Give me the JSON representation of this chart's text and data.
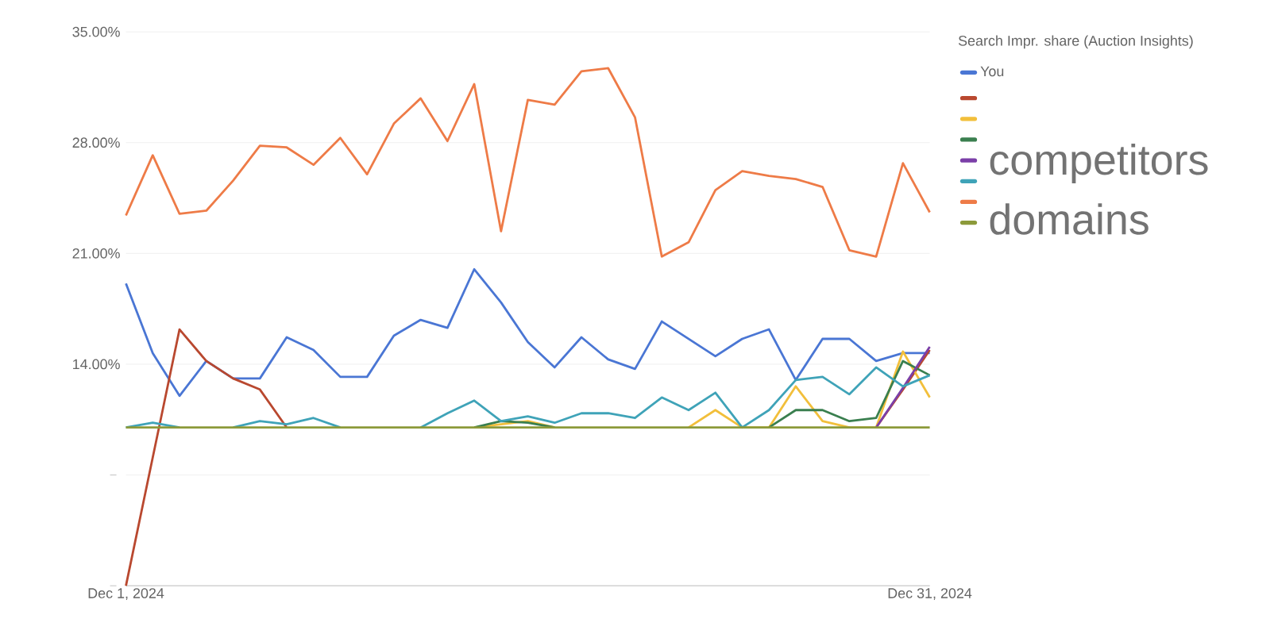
{
  "chart_data": {
    "type": "line",
    "legend_title": "Search Impr. share (Auction Insights)",
    "legend": "right",
    "grid": "y",
    "marker": "none",
    "line_style": "solid",
    "xlim": [
      "2024-12-01",
      "2024-12-31"
    ],
    "xticks": [
      {
        "value": "2024-12-01",
        "label": "Dec 1, 2024"
      },
      {
        "value": "2024-12-31",
        "label": "Dec 31, 2024"
      }
    ],
    "ylim": [
      0,
      35
    ],
    "yticks": [
      {
        "value": 0,
        "label": null
      },
      {
        "value": 7,
        "label": null
      },
      {
        "value": 14,
        "label": "14.00%"
      },
      {
        "value": 21,
        "label": "21.00%"
      },
      {
        "value": 28,
        "label": "28.00%"
      },
      {
        "value": 35,
        "label": "35.00%"
      }
    ],
    "annotations": [
      "competitors",
      "domains"
    ],
    "x": [
      "2024-12-01",
      "2024-12-02",
      "2024-12-03",
      "2024-12-04",
      "2024-12-05",
      "2024-12-06",
      "2024-12-07",
      "2024-12-08",
      "2024-12-09",
      "2024-12-10",
      "2024-12-11",
      "2024-12-12",
      "2024-12-13",
      "2024-12-14",
      "2024-12-15",
      "2024-12-16",
      "2024-12-17",
      "2024-12-18",
      "2024-12-19",
      "2024-12-20",
      "2024-12-21",
      "2024-12-22",
      "2024-12-23",
      "2024-12-24",
      "2024-12-25",
      "2024-12-26",
      "2024-12-27",
      "2024-12-28",
      "2024-12-29",
      "2024-12-30",
      "2024-12-31"
    ],
    "series": [
      {
        "name": "You",
        "color": "#4a76d4",
        "values": [
          19.1,
          14.7,
          12.0,
          14.2,
          13.1,
          13.1,
          15.7,
          14.9,
          13.2,
          13.2,
          15.8,
          16.8,
          16.3,
          20.0,
          17.9,
          15.4,
          13.8,
          15.7,
          14.3,
          13.7,
          16.7,
          15.6,
          14.5,
          15.6,
          16.2,
          13.0,
          15.6,
          15.6,
          14.2,
          14.7,
          14.7
        ]
      },
      {
        "color": "#b9482f",
        "values": [
          0,
          8.1,
          16.2,
          14.2,
          13.1,
          12.4,
          10.0,
          null,
          null,
          null,
          null,
          null,
          null,
          null,
          null,
          null,
          null,
          null,
          null,
          null,
          null,
          null,
          null,
          null,
          null,
          null,
          null,
          null,
          10,
          12.4,
          14.9
        ]
      },
      {
        "color": "#f2bf3b",
        "values": [
          null,
          null,
          null,
          null,
          null,
          null,
          null,
          null,
          null,
          null,
          null,
          null,
          null,
          10,
          10.2,
          10.4,
          10,
          null,
          null,
          null,
          null,
          10,
          11.1,
          10,
          10,
          12.6,
          10.4,
          10,
          10,
          14.8,
          11.9
        ]
      },
      {
        "color": "#3a7f4f",
        "values": [
          null,
          null,
          null,
          null,
          null,
          null,
          null,
          null,
          null,
          null,
          null,
          null,
          null,
          10,
          10.4,
          10.3,
          10,
          null,
          null,
          null,
          null,
          null,
          null,
          null,
          10,
          11.1,
          11.1,
          10.4,
          10.6,
          14.2,
          13.3
        ]
      },
      {
        "color": "#7b3fa8",
        "values": [
          null,
          null,
          null,
          null,
          null,
          null,
          null,
          null,
          null,
          null,
          null,
          null,
          null,
          null,
          null,
          null,
          null,
          null,
          null,
          null,
          null,
          null,
          null,
          null,
          null,
          null,
          null,
          null,
          10,
          12.5,
          15.1
        ]
      },
      {
        "color": "#3fa3b8",
        "values": [
          10,
          10.3,
          10,
          null,
          10,
          10.4,
          10.2,
          10.6,
          10,
          null,
          null,
          10,
          10.9,
          11.7,
          10.4,
          10.7,
          10.3,
          10.9,
          10.9,
          10.6,
          11.9,
          11.1,
          12.2,
          10,
          11.1,
          13.0,
          13.2,
          12.1,
          13.8,
          12.6,
          13.3
        ]
      },
      {
        "color": "#ee7b47",
        "values": [
          23.4,
          27.2,
          23.5,
          23.7,
          25.6,
          27.8,
          27.7,
          26.6,
          28.3,
          26.0,
          29.2,
          30.8,
          28.1,
          31.7,
          22.4,
          30.7,
          30.4,
          32.5,
          32.7,
          29.6,
          20.8,
          21.7,
          25.0,
          26.2,
          25.9,
          25.7,
          25.2,
          21.2,
          20.8,
          26.7,
          23.6
        ]
      },
      {
        "color": "#8c9a3a",
        "values": [
          10,
          10,
          10,
          10,
          10,
          10,
          10,
          10,
          10,
          10,
          10,
          10,
          10,
          10,
          10,
          10,
          10,
          10,
          10,
          10,
          10,
          10,
          10,
          10,
          10,
          10,
          10,
          10,
          10,
          10,
          10
        ]
      }
    ]
  }
}
